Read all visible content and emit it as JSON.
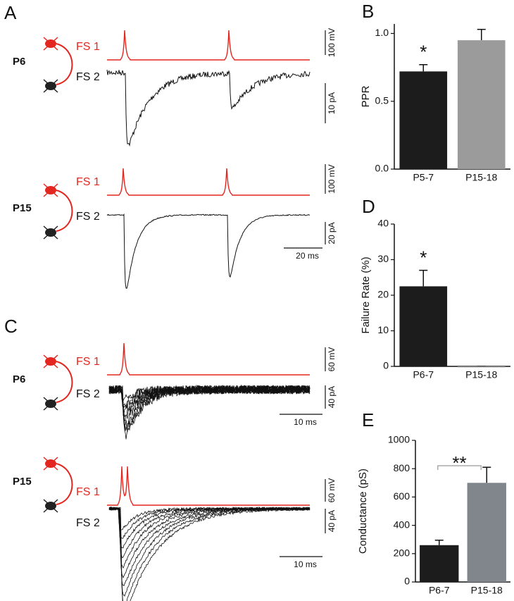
{
  "panels": {
    "A": {
      "letter": "A",
      "rows": [
        {
          "age": "P6",
          "pre": "FS 1",
          "post": "FS 2",
          "scale_v": "100 mV",
          "scale_i": "10 pA"
        },
        {
          "age": "P15",
          "pre": "FS 1",
          "post": "FS 2",
          "scale_v": "100 mV",
          "scale_i": "20 pA",
          "scale_t": "20 ms"
        }
      ]
    },
    "C": {
      "letter": "C",
      "rows": [
        {
          "age": "P6",
          "pre": "FS 1",
          "post": "FS 2",
          "scale_v": "60 mV",
          "scale_i": "40 pA",
          "scale_t": "10 ms"
        },
        {
          "age": "P15",
          "pre": "FS 1",
          "post": "FS 2",
          "scale_v": "60 mV",
          "scale_i": "40 pA",
          "scale_t": "10 ms"
        }
      ]
    }
  },
  "chart_data": [
    {
      "type": "bar",
      "label": "B",
      "ylabel": "PPR",
      "categories": [
        "P5-7",
        "P15-18"
      ],
      "values": [
        0.72,
        0.95
      ],
      "errors": [
        0.05,
        0.08
      ],
      "colors": [
        "#1c1c1c",
        "#9b9b9b"
      ],
      "ylim": [
        0,
        1.07
      ],
      "yticks": [
        {
          "value": 0,
          "label": "0.0"
        },
        0.5,
        {
          "value": 1,
          "label": "1.0"
        }
      ],
      "annotation": "*"
    },
    {
      "type": "bar",
      "label": "D",
      "ylabel": "Failure Rate (%)",
      "categories": [
        "P6-7",
        "P15-18"
      ],
      "values": [
        22.5,
        0
      ],
      "errors": [
        4.5,
        0
      ],
      "colors": [
        "#1c1c1c",
        "#9b9b9b"
      ],
      "ylim": [
        0,
        40
      ],
      "yticks": [
        0,
        10,
        20,
        30,
        40
      ],
      "annotation": "*"
    },
    {
      "type": "bar",
      "label": "E",
      "ylabel": "Conductance (pS)",
      "categories": [
        "P6-7",
        "P15-18"
      ],
      "values": [
        260,
        700
      ],
      "errors": [
        35,
        110
      ],
      "colors": [
        "#1c1c1c",
        "#80868b"
      ],
      "ylim": [
        0,
        1000
      ],
      "yticks": [
        0,
        200,
        400,
        600,
        800,
        1000
      ],
      "annotation": "**"
    }
  ]
}
